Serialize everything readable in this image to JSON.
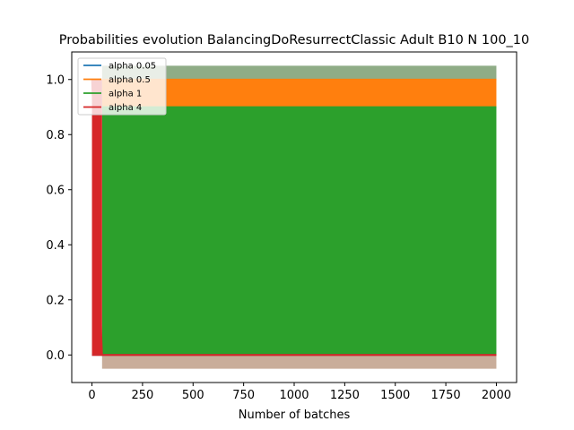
{
  "chart_data": {
    "type": "line",
    "title": "Probabilities evolution BalancingDoResurrectClassic Adult B10 N 100_10",
    "xlabel": "Number of batches",
    "ylabel": "",
    "xlim": [
      -100,
      2100
    ],
    "ylim": [
      -0.1,
      1.1
    ],
    "xticks": [
      0,
      250,
      500,
      750,
      1000,
      1250,
      1500,
      1750,
      2000
    ],
    "yticks": [
      0.0,
      0.2,
      0.4,
      0.6,
      0.8,
      1.0
    ],
    "xtick_labels": [
      "0",
      "250",
      "500",
      "750",
      "1000",
      "1250",
      "1500",
      "1750",
      "2000"
    ],
    "ytick_labels": [
      "0.0",
      "0.2",
      "0.4",
      "0.6",
      "0.8",
      "1.0"
    ],
    "grid": false,
    "legend_position": "top-left",
    "bands": [
      {
        "color": "#8fac86",
        "x": [
          50,
          2000
        ],
        "y_low": 1.0,
        "y_high": 1.05
      },
      {
        "color": "#c9ad9a",
        "x": [
          50,
          2000
        ],
        "y_low": -0.05,
        "y_high": 0.0
      }
    ],
    "series": [
      {
        "name": "alpha 0.05",
        "color": "#1f77b4",
        "x": [
          0,
          2000
        ],
        "y": [
          0.0,
          0.0
        ]
      },
      {
        "name": "alpha 0.5",
        "color": "#ff7f0e",
        "x": [
          50,
          2000
        ],
        "y": [
          1.0,
          1.0
        ]
      },
      {
        "name": "alpha 1",
        "color": "#2ca02c",
        "x": [
          50,
          2000
        ],
        "y": [
          0.9,
          0.9
        ]
      },
      {
        "name": "alpha 4",
        "color": "#d62728",
        "x": [
          0,
          50,
          2000
        ],
        "y": [
          1.0,
          0.0,
          0.0
        ]
      }
    ]
  }
}
